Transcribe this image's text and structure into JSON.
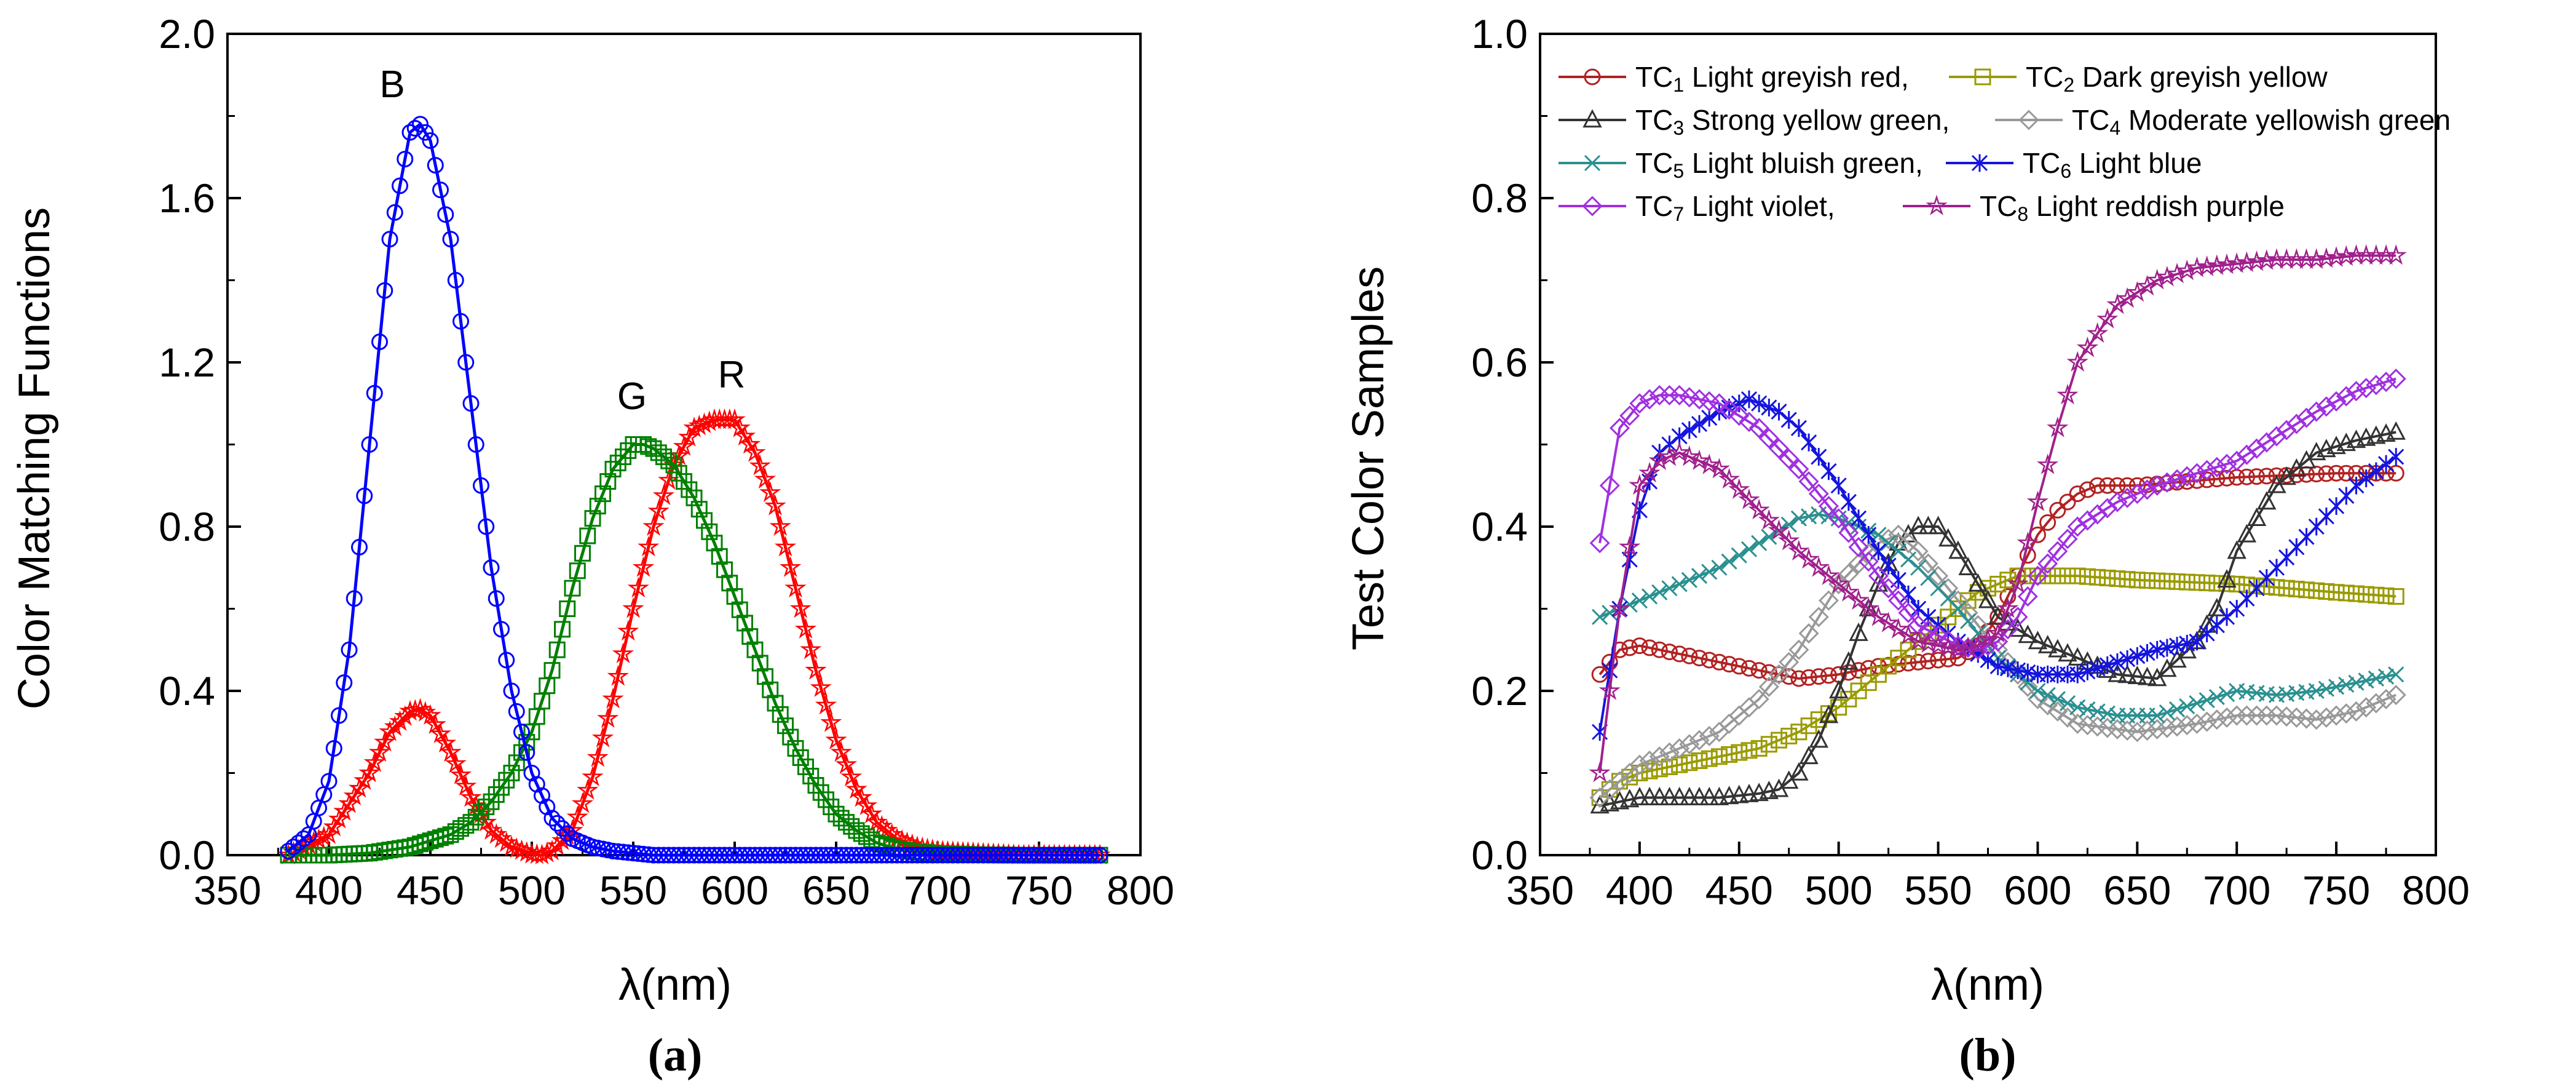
{
  "chart_data": [
    {
      "type": "line",
      "panel_label": "(a)",
      "title": "",
      "xlabel": "λ(nm)",
      "ylabel": "Color Matching Functions",
      "xlim": [
        350,
        800
      ],
      "ylim": [
        0,
        2.0
      ],
      "xticks": [
        "350",
        "400",
        "450",
        "500",
        "550",
        "600",
        "650",
        "700",
        "750",
        "800"
      ],
      "yticks": [
        "0.0",
        "0.4",
        "0.8",
        "1.2",
        "1.6",
        "2.0"
      ],
      "grid": false,
      "curve_labels": {
        "B": "B",
        "G": "G",
        "R": "R"
      },
      "series": [
        {
          "name": "R",
          "color": "#ff0000",
          "marker": "star",
          "x": [
            380,
            400,
            420,
            430,
            440,
            445,
            450,
            460,
            470,
            480,
            490,
            500,
            505,
            510,
            520,
            530,
            540,
            550,
            560,
            570,
            580,
            590,
            600,
            610,
            620,
            630,
            640,
            650,
            660,
            670,
            680,
            690,
            700,
            720,
            740,
            760,
            780
          ],
          "y": [
            0.0,
            0.05,
            0.2,
            0.3,
            0.35,
            0.355,
            0.34,
            0.25,
            0.14,
            0.06,
            0.02,
            0.002,
            0.0,
            0.01,
            0.06,
            0.19,
            0.38,
            0.6,
            0.8,
            0.95,
            1.04,
            1.06,
            1.06,
            0.98,
            0.85,
            0.65,
            0.45,
            0.28,
            0.16,
            0.08,
            0.04,
            0.02,
            0.01,
            0.005,
            0.0,
            0.0,
            0.0
          ]
        },
        {
          "name": "G",
          "color": "#008000",
          "marker": "square",
          "x": [
            380,
            400,
            420,
            440,
            460,
            470,
            480,
            490,
            500,
            510,
            520,
            530,
            540,
            550,
            555,
            560,
            570,
            580,
            590,
            600,
            610,
            620,
            630,
            640,
            650,
            660,
            670,
            680,
            690,
            700,
            720,
            740,
            760,
            780
          ],
          "y": [
            0.0,
            0.0,
            0.005,
            0.02,
            0.05,
            0.08,
            0.13,
            0.2,
            0.3,
            0.45,
            0.65,
            0.82,
            0.94,
            1.0,
            1.0,
            0.99,
            0.95,
            0.87,
            0.76,
            0.63,
            0.5,
            0.37,
            0.26,
            0.17,
            0.1,
            0.06,
            0.03,
            0.015,
            0.008,
            0.004,
            0.001,
            0.0,
            0.0,
            0.0
          ]
        },
        {
          "name": "B",
          "color": "#0000ff",
          "marker": "circle",
          "x": [
            380,
            390,
            400,
            410,
            420,
            430,
            440,
            445,
            450,
            460,
            470,
            480,
            490,
            500,
            510,
            520,
            530,
            540,
            550,
            560,
            580,
            600,
            650,
            700,
            780
          ],
          "y": [
            0.01,
            0.05,
            0.18,
            0.5,
            1.0,
            1.5,
            1.76,
            1.78,
            1.74,
            1.5,
            1.1,
            0.7,
            0.4,
            0.2,
            0.09,
            0.04,
            0.02,
            0.01,
            0.005,
            0.0,
            0.0,
            0.0,
            0.0,
            0.0,
            0.0
          ]
        }
      ]
    },
    {
      "type": "line",
      "panel_label": "(b)",
      "title": "",
      "xlabel": "λ(nm)",
      "ylabel": "Test Color Samples",
      "xlim": [
        350,
        800
      ],
      "ylim": [
        0,
        1.0
      ],
      "xticks": [
        "350",
        "400",
        "450",
        "500",
        "550",
        "600",
        "650",
        "700",
        "750",
        "800"
      ],
      "yticks": [
        "0.0",
        "0.2",
        "0.4",
        "0.6",
        "0.8",
        "1.0"
      ],
      "grid": false,
      "legend_position": "top",
      "series": [
        {
          "name": "TC1 Light greyish red,",
          "tc_prefix": "TC",
          "tc_index": "1",
          "tc_desc": "Light greyish red,",
          "color": "#b22222",
          "marker": "circle",
          "x": [
            380,
            390,
            400,
            420,
            440,
            460,
            480,
            500,
            520,
            540,
            560,
            570,
            580,
            590,
            600,
            610,
            620,
            630,
            650,
            700,
            750,
            780
          ],
          "y": [
            0.22,
            0.25,
            0.255,
            0.245,
            0.235,
            0.225,
            0.215,
            0.22,
            0.23,
            0.235,
            0.24,
            0.255,
            0.29,
            0.34,
            0.39,
            0.42,
            0.44,
            0.45,
            0.45,
            0.46,
            0.465,
            0.465
          ]
        },
        {
          "name": "TC2 Dark greyish yellow",
          "tc_prefix": "TC",
          "tc_index": "2",
          "tc_desc": "Dark greyish yellow",
          "color": "#9a9a00",
          "marker": "square",
          "x": [
            380,
            390,
            400,
            420,
            440,
            460,
            480,
            500,
            520,
            540,
            560,
            570,
            580,
            590,
            600,
            620,
            650,
            700,
            750,
            780
          ],
          "y": [
            0.07,
            0.09,
            0.1,
            0.11,
            0.12,
            0.13,
            0.15,
            0.18,
            0.22,
            0.26,
            0.3,
            0.32,
            0.33,
            0.34,
            0.34,
            0.34,
            0.335,
            0.33,
            0.32,
            0.315
          ]
        },
        {
          "name": "TC3 Strong yellow green,",
          "tc_prefix": "TC",
          "tc_index": "3",
          "tc_desc": "Strong yellow green,",
          "color": "#333333",
          "marker": "triangle",
          "x": [
            380,
            400,
            420,
            440,
            460,
            470,
            480,
            490,
            500,
            510,
            520,
            530,
            540,
            550,
            560,
            570,
            580,
            600,
            620,
            640,
            660,
            680,
            690,
            700,
            720,
            740,
            760,
            780
          ],
          "y": [
            0.06,
            0.07,
            0.07,
            0.07,
            0.075,
            0.08,
            0.1,
            0.14,
            0.2,
            0.27,
            0.33,
            0.38,
            0.4,
            0.4,
            0.37,
            0.33,
            0.29,
            0.26,
            0.24,
            0.22,
            0.215,
            0.26,
            0.3,
            0.37,
            0.45,
            0.49,
            0.505,
            0.515
          ]
        },
        {
          "name": "TC4 Moderate yellowish green",
          "tc_prefix": "TC",
          "tc_index": "4",
          "tc_desc": "Moderate yellowish green",
          "color": "#999999",
          "marker": "diamond",
          "x": [
            380,
            400,
            420,
            440,
            460,
            480,
            500,
            520,
            530,
            540,
            560,
            580,
            600,
            620,
            650,
            680,
            700,
            720,
            740,
            760,
            780
          ],
          "y": [
            0.07,
            0.11,
            0.13,
            0.15,
            0.19,
            0.25,
            0.33,
            0.38,
            0.39,
            0.37,
            0.31,
            0.25,
            0.19,
            0.16,
            0.15,
            0.16,
            0.17,
            0.17,
            0.165,
            0.175,
            0.195
          ]
        },
        {
          "name": "TC5 Light bluish green,",
          "tc_prefix": "TC",
          "tc_index": "5",
          "tc_desc": "Light bluish green,",
          "color": "#2a9090",
          "marker": "x",
          "x": [
            380,
            400,
            420,
            440,
            460,
            480,
            490,
            500,
            520,
            540,
            560,
            580,
            600,
            620,
            640,
            660,
            680,
            700,
            720,
            740,
            760,
            780
          ],
          "y": [
            0.29,
            0.31,
            0.33,
            0.35,
            0.38,
            0.41,
            0.415,
            0.41,
            0.39,
            0.35,
            0.3,
            0.24,
            0.2,
            0.18,
            0.17,
            0.17,
            0.185,
            0.2,
            0.195,
            0.2,
            0.21,
            0.22
          ]
        },
        {
          "name": "TC6 Light blue",
          "tc_prefix": "TC",
          "tc_index": "6",
          "tc_desc": "Light blue",
          "color": "#1414e0",
          "marker": "asterisk",
          "x": [
            380,
            390,
            400,
            410,
            420,
            440,
            455,
            470,
            480,
            500,
            520,
            540,
            560,
            580,
            600,
            620,
            640,
            660,
            680,
            700,
            720,
            740,
            760,
            780
          ],
          "y": [
            0.15,
            0.3,
            0.42,
            0.49,
            0.51,
            0.54,
            0.555,
            0.54,
            0.52,
            0.45,
            0.37,
            0.3,
            0.26,
            0.23,
            0.22,
            0.22,
            0.235,
            0.25,
            0.26,
            0.3,
            0.35,
            0.4,
            0.45,
            0.485
          ]
        },
        {
          "name": "TC7 Light violet,",
          "tc_prefix": "TC",
          "tc_index": "7",
          "tc_desc": "Light violet,",
          "color": "#a030e0",
          "marker": "diamond",
          "x": [
            380,
            390,
            400,
            410,
            420,
            440,
            460,
            480,
            500,
            520,
            540,
            560,
            570,
            580,
            590,
            600,
            620,
            640,
            660,
            680,
            700,
            720,
            740,
            760,
            780
          ],
          "y": [
            0.38,
            0.52,
            0.55,
            0.56,
            0.56,
            0.55,
            0.52,
            0.47,
            0.41,
            0.34,
            0.28,
            0.255,
            0.25,
            0.26,
            0.29,
            0.34,
            0.4,
            0.43,
            0.45,
            0.465,
            0.48,
            0.51,
            0.54,
            0.565,
            0.58
          ]
        },
        {
          "name": "TC8 Light reddish purple",
          "tc_prefix": "TC",
          "tc_index": "8",
          "tc_desc": "Light reddish purple",
          "color": "#a0208c",
          "marker": "star",
          "x": [
            380,
            390,
            400,
            410,
            420,
            440,
            460,
            480,
            500,
            520,
            540,
            560,
            570,
            580,
            590,
            600,
            610,
            620,
            640,
            660,
            680,
            700,
            720,
            740,
            760,
            780
          ],
          "y": [
            0.1,
            0.3,
            0.45,
            0.48,
            0.49,
            0.47,
            0.42,
            0.37,
            0.33,
            0.29,
            0.26,
            0.25,
            0.255,
            0.27,
            0.33,
            0.43,
            0.52,
            0.6,
            0.67,
            0.7,
            0.715,
            0.72,
            0.725,
            0.725,
            0.73,
            0.73
          ]
        }
      ]
    }
  ]
}
